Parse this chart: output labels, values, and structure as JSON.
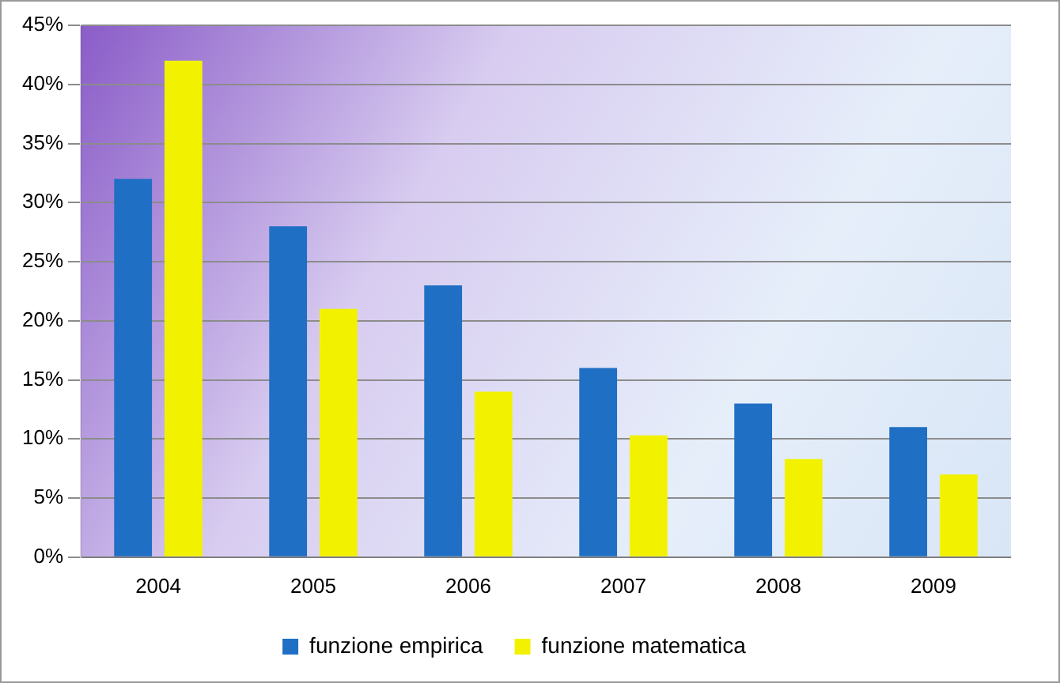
{
  "chart_data": {
    "type": "bar",
    "categories": [
      "2004",
      "2005",
      "2006",
      "2007",
      "2008",
      "2009"
    ],
    "series": [
      {
        "name": "funzione empirica",
        "color": "#1f6fc4",
        "values": [
          32,
          28,
          23,
          16,
          13,
          11
        ]
      },
      {
        "name": "funzione matematica",
        "color": "#f2f200",
        "values": [
          42,
          21,
          14,
          10.3,
          8.3,
          7
        ]
      }
    ],
    "ylim": [
      0,
      45
    ],
    "yticks": [
      {
        "value": 0,
        "label": "0%"
      },
      {
        "value": 5,
        "label": "5%"
      },
      {
        "value": 10,
        "label": "10%"
      },
      {
        "value": 15,
        "label": "15%"
      },
      {
        "value": 20,
        "label": "20%"
      },
      {
        "value": 25,
        "label": "25%"
      },
      {
        "value": 30,
        "label": "30%"
      },
      {
        "value": 35,
        "label": "35%"
      },
      {
        "value": 40,
        "label": "40%"
      },
      {
        "value": 45,
        "label": "45%"
      }
    ],
    "grid": "y",
    "legend": "bottom"
  }
}
